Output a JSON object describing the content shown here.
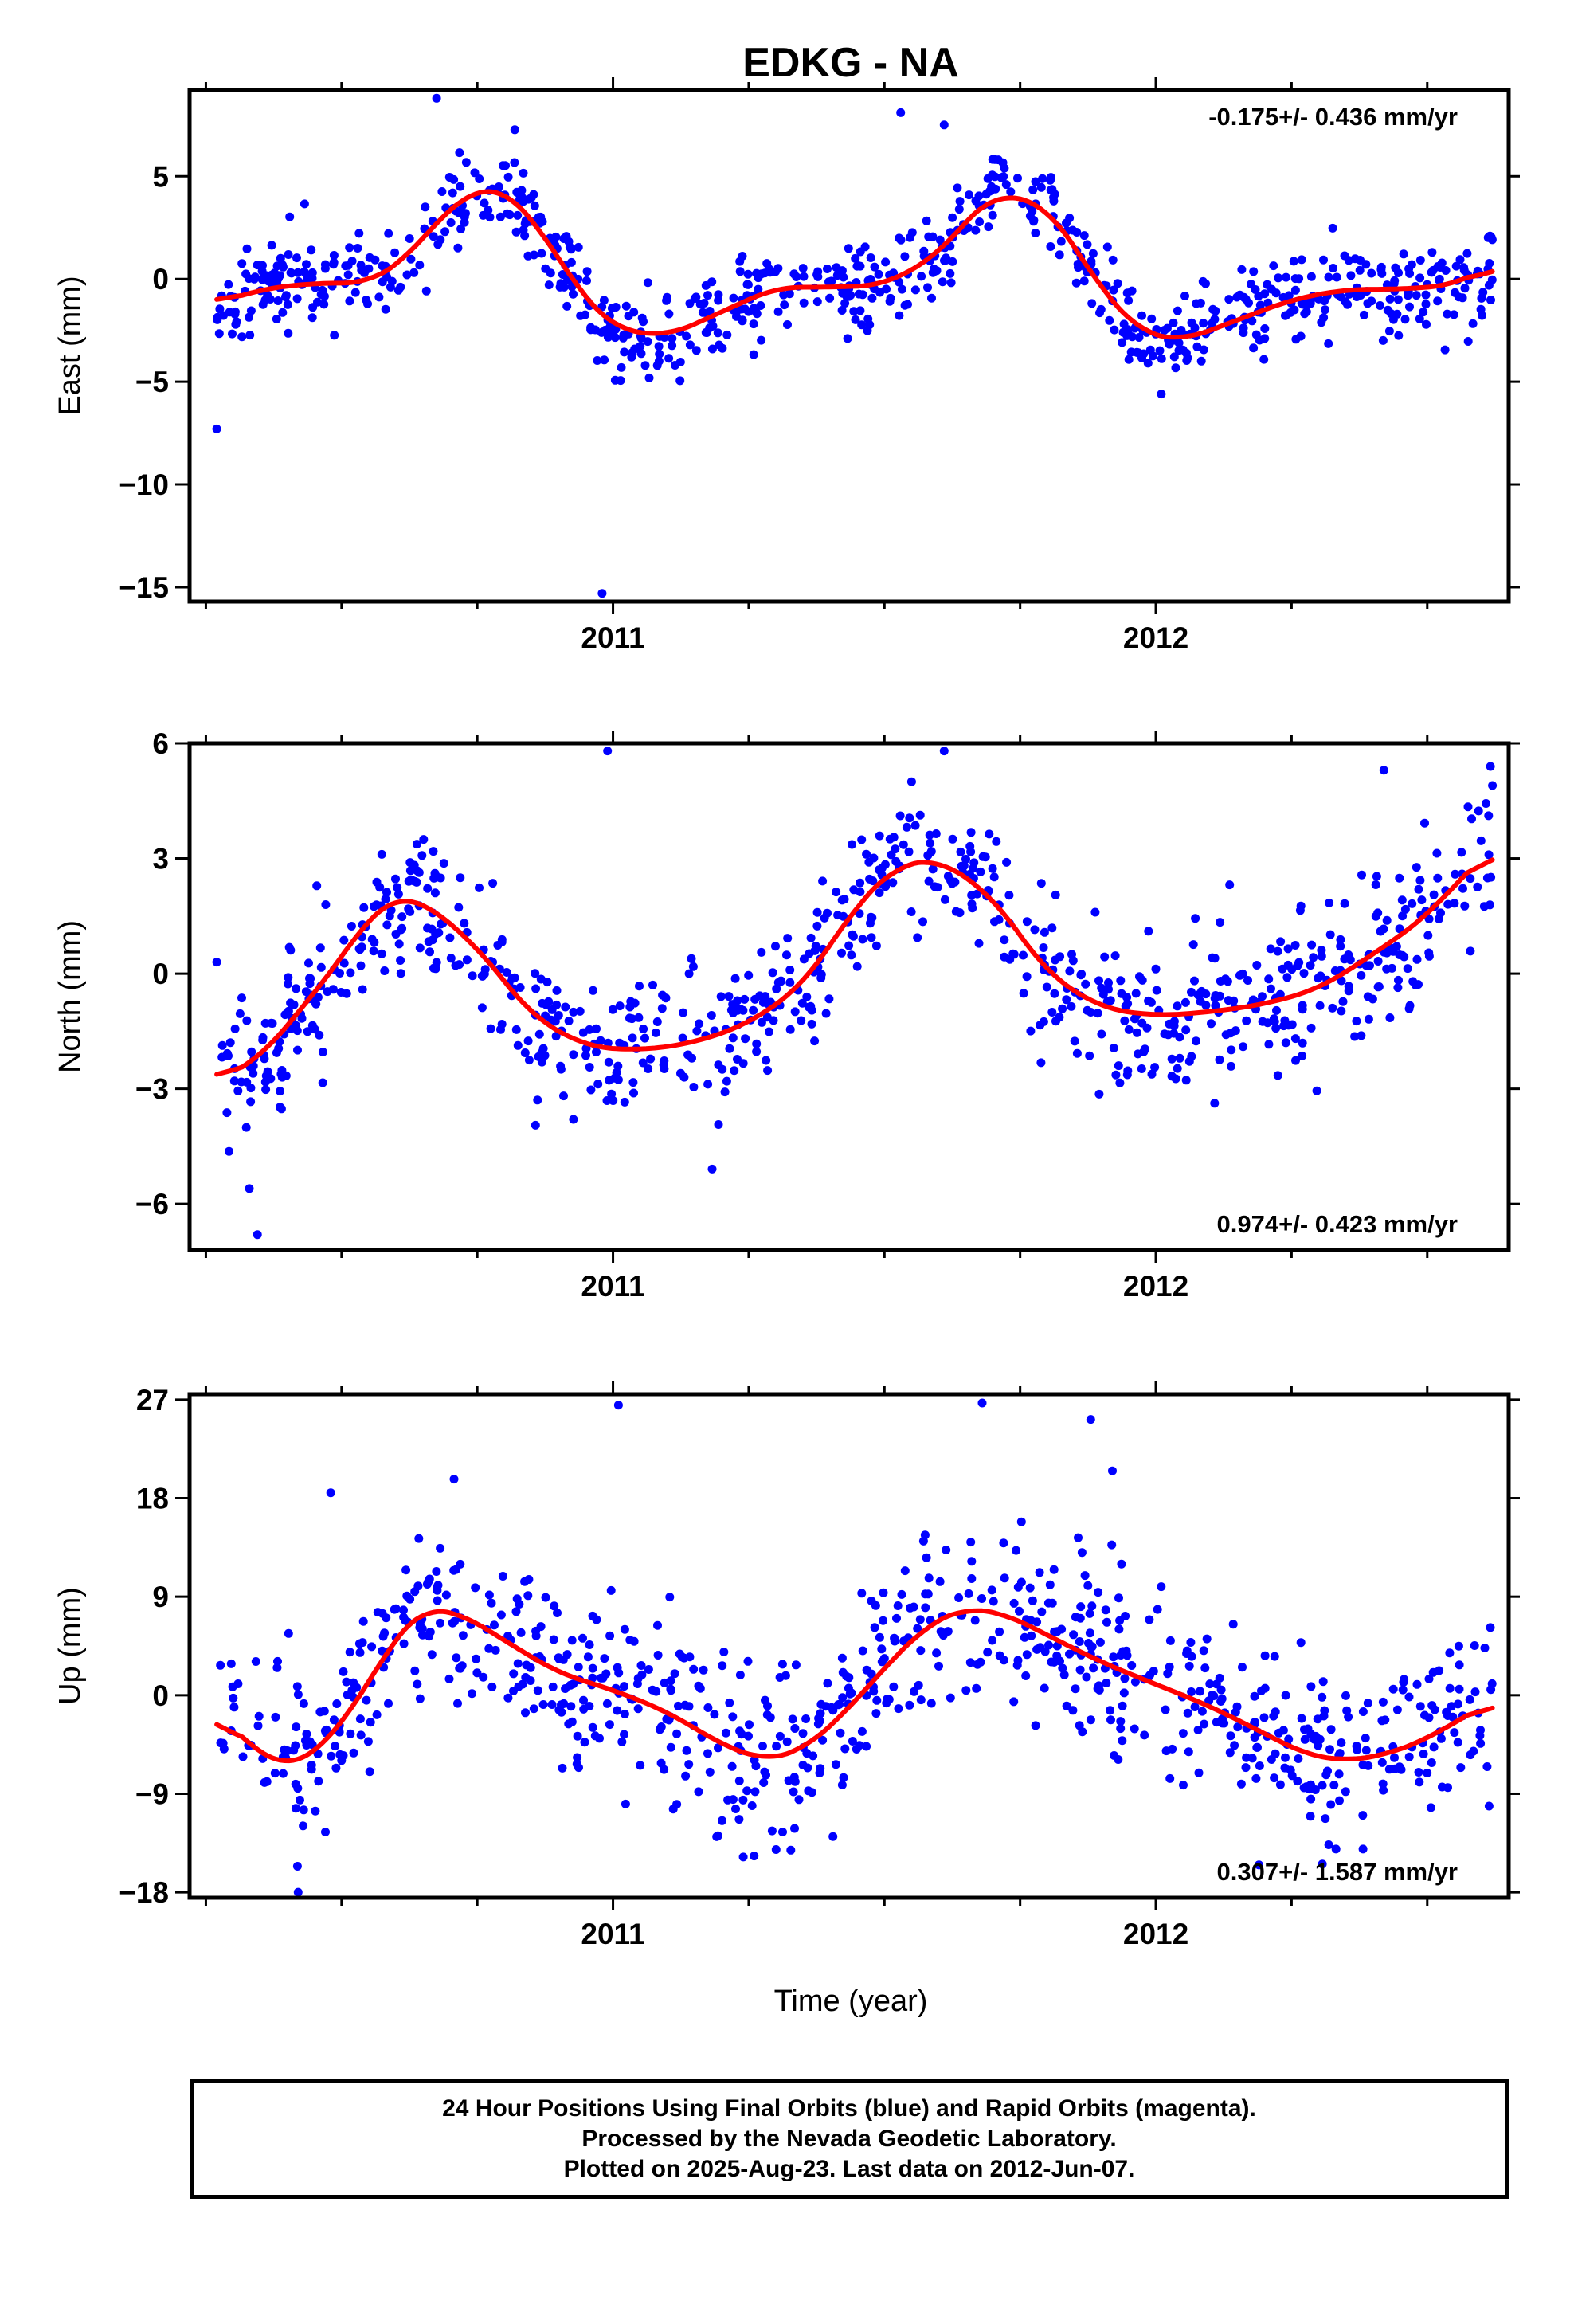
{
  "figure": {
    "title": "EDKG - NA",
    "xlabel": "Time (year)",
    "colors": {
      "points": "#0000ff",
      "model": "#ff0000",
      "frame": "#000000"
    }
  },
  "chart_data": [
    {
      "type": "scatter",
      "component": "east",
      "ylabel": "East (mm)",
      "rate_label": "-0.175+/- 0.436 mm/yr",
      "rate_position": "top-right",
      "xlim": [
        2010.22,
        2012.65
      ],
      "ylim": [
        -15.7,
        9.2
      ],
      "yticks": [
        -15,
        -10,
        -5,
        0,
        5
      ],
      "ytick_labels": [
        "−15",
        "−10",
        "−5",
        "0",
        "5"
      ],
      "xticks": [
        2011,
        2012
      ],
      "xtick_labels": [
        "2011",
        "2012"
      ],
      "model": {
        "x": [
          2010.27,
          2010.35,
          2010.45,
          2010.55,
          2010.62,
          2010.65,
          2010.7,
          2010.75,
          2010.8,
          2010.85,
          2010.9,
          2010.95,
          2011.0,
          2011.1,
          2011.2,
          2011.3,
          2011.4,
          2011.5,
          2011.6,
          2011.65,
          2011.7,
          2011.8,
          2011.9,
          2011.97,
          2012.05,
          2012.15,
          2012.25,
          2012.35,
          2012.45,
          2012.55,
          2012.62
        ],
        "y": [
          -1.2,
          -0.5,
          -0.2,
          -0.2,
          1.0,
          2.0,
          3.5,
          4.4,
          4.4,
          3.0,
          1.0,
          -1.0,
          -2.4,
          -2.8,
          -1.6,
          -0.4,
          -0.4,
          -0.3,
          1.2,
          2.8,
          4.2,
          3.6,
          -0.5,
          -2.6,
          -3.0,
          -2.0,
          -1.0,
          -0.5,
          -0.5,
          -0.3,
          0.7
        ]
      },
      "observations": {
        "seed": 11,
        "count": 820,
        "x_range": [
          2010.27,
          2012.62
        ],
        "noise_sd": 1.1,
        "outliers": [
          [
            2010.27,
            -7.3
          ],
          [
            2010.98,
            -15.3
          ],
          [
            2010.675,
            8.8
          ],
          [
            2011.53,
            8.1
          ],
          [
            2011.61,
            7.5
          ],
          [
            2012.01,
            -5.6
          ]
        ]
      }
    },
    {
      "type": "scatter",
      "component": "north",
      "ylabel": "North (mm)",
      "rate_label": "0.974+/- 0.423 mm/yr",
      "rate_position": "bottom-right",
      "xlim": [
        2010.22,
        2012.65
      ],
      "ylim": [
        -7.2,
        6.0
      ],
      "yticks": [
        -6,
        -3,
        0,
        3,
        6
      ],
      "ytick_labels": [
        "−6",
        "−3",
        "0",
        "3",
        "6"
      ],
      "xticks": [
        2011,
        2012
      ],
      "xtick_labels": [
        "2011",
        "2012"
      ],
      "model": {
        "x": [
          2010.27,
          2010.35,
          2010.45,
          2010.5,
          2010.55,
          2010.6,
          2010.65,
          2010.75,
          2010.85,
          2010.95,
          2011.05,
          2011.15,
          2011.25,
          2011.35,
          2011.45,
          2011.52,
          2011.6,
          2011.7,
          2011.8,
          2011.9,
          2012.0,
          2012.1,
          2012.2,
          2012.3,
          2012.4,
          2012.5,
          2012.55,
          2012.62
        ],
        "y": [
          -2.8,
          -2.2,
          -0.5,
          0.4,
          1.5,
          2.0,
          1.9,
          0.7,
          -1.1,
          -1.9,
          -2.0,
          -1.8,
          -1.3,
          -0.3,
          1.8,
          2.8,
          3.0,
          2.0,
          0.0,
          -0.9,
          -1.1,
          -1.0,
          -0.8,
          -0.4,
          0.5,
          1.5,
          2.3,
          3.3
        ]
      },
      "observations": {
        "seed": 23,
        "count": 820,
        "x_range": [
          2010.27,
          2012.62
        ],
        "noise_sd": 0.95,
        "outliers": [
          [
            2010.27,
            0.3
          ],
          [
            2010.345,
            -6.8
          ],
          [
            2010.33,
            -5.6
          ],
          [
            2010.99,
            5.8
          ],
          [
            2011.61,
            5.8
          ],
          [
            2011.55,
            5.0
          ],
          [
            2012.42,
            5.3
          ],
          [
            2012.62,
            4.9
          ]
        ]
      }
    },
    {
      "type": "scatter",
      "component": "up",
      "ylabel": "Up (mm)",
      "rate_label": "0.307+/- 1.587 mm/yr",
      "rate_position": "bottom-right",
      "xlim": [
        2010.22,
        2012.65
      ],
      "ylim": [
        -18.5,
        27.5
      ],
      "yticks": [
        -18,
        -9,
        0,
        9,
        18,
        27
      ],
      "ytick_labels": [
        "−18",
        "−9",
        "0",
        "9",
        "18",
        "27"
      ],
      "xticks": [
        2011,
        2012
      ],
      "xtick_labels": [
        "2011",
        "2012"
      ],
      "model": {
        "x": [
          2010.27,
          2010.35,
          2010.4,
          2010.45,
          2010.5,
          2010.55,
          2010.6,
          2010.65,
          2010.72,
          2010.8,
          2010.9,
          2011.0,
          2011.1,
          2011.2,
          2011.28,
          2011.35,
          2011.42,
          2011.5,
          2011.58,
          2011.65,
          2011.72,
          2011.8,
          2011.9,
          2012.0,
          2012.1,
          2012.2,
          2012.28,
          2012.35,
          2012.42,
          2012.5,
          2012.55,
          2012.62
        ],
        "y": [
          -1.5,
          -5.5,
          -6.5,
          -5.5,
          -2.5,
          1.0,
          5.5,
          8.0,
          7.5,
          5.0,
          2.0,
          0.5,
          -1.5,
          -4.5,
          -6.0,
          -5.0,
          -2.0,
          2.5,
          6.5,
          8.0,
          7.5,
          5.5,
          3.0,
          1.0,
          -1.0,
          -3.5,
          -5.5,
          -6.0,
          -5.5,
          -4.0,
          -2.5,
          -0.5
        ]
      },
      "observations": {
        "seed": 37,
        "count": 820,
        "x_range": [
          2010.27,
          2012.62
        ],
        "noise_sd": 4.0,
        "outliers": [
          [
            2011.01,
            26.5
          ],
          [
            2011.68,
            26.7
          ],
          [
            2011.88,
            25.2
          ],
          [
            2011.92,
            20.5
          ],
          [
            2010.48,
            18.5
          ],
          [
            2010.42,
            -18.0
          ],
          [
            2012.19,
            -15.5
          ]
        ]
      }
    }
  ],
  "footer": {
    "line1": "24 Hour Positions Using Final Orbits (blue) and Rapid Orbits (magenta).",
    "line2": "Processed by the Nevada Geodetic Laboratory.",
    "line3": "Plotted on 2025-Aug-23. Last data on 2012-Jun-07."
  }
}
